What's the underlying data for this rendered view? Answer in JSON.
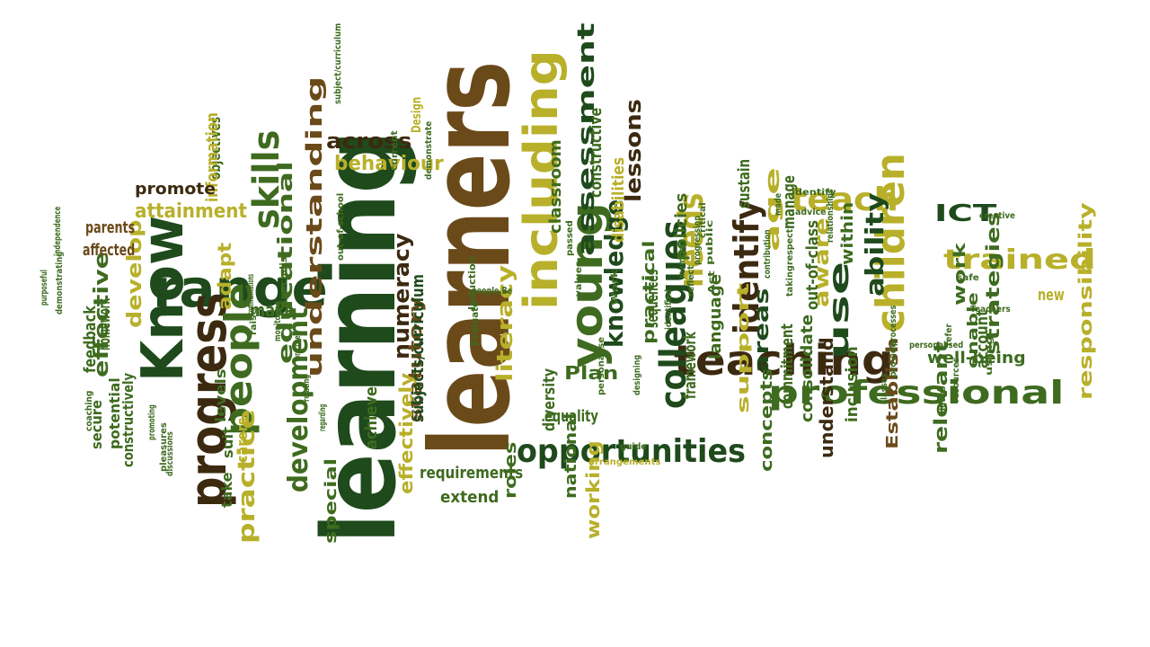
{
  "palette": {
    "dark_green": "#1f4a1c",
    "green": "#3e6b1f",
    "olive": "#9a9a1e",
    "yellow_olive": "#b8b02a",
    "brown": "#6b4a1a",
    "dark_brown": "#3c2a10"
  },
  "words": [
    {
      "text": "learning",
      "color": "dark_green"
    },
    {
      "text": "learners",
      "color": "brown"
    },
    {
      "text": "Know",
      "color": "dark_green"
    },
    {
      "text": "range",
      "color": "dark_green"
    },
    {
      "text": "progress",
      "color": "dark_brown"
    },
    {
      "text": "including",
      "color": "yellow_olive"
    },
    {
      "text": "teaching",
      "color": "dark_brown"
    },
    {
      "text": "young",
      "color": "green"
    },
    {
      "text": "children",
      "color": "yellow_olive"
    },
    {
      "text": "professional",
      "color": "green"
    },
    {
      "text": "people",
      "color": "green"
    },
    {
      "text": "opportunities",
      "color": "dark_green"
    },
    {
      "text": "colleagues",
      "color": "dark_green"
    },
    {
      "text": "teach",
      "color": "yellow_olive"
    },
    {
      "text": "trained",
      "color": "yellow_olive"
    },
    {
      "text": "use",
      "color": "dark_green"
    },
    {
      "text": "ability",
      "color": "dark_green"
    },
    {
      "text": "needs",
      "color": "yellow_olive"
    },
    {
      "text": "identify",
      "color": "dark_brown"
    },
    {
      "text": "skills",
      "color": "green"
    },
    {
      "text": "practice",
      "color": "yellow_olive"
    },
    {
      "text": "development",
      "color": "green"
    },
    {
      "text": "across",
      "color": "dark_brown"
    },
    {
      "text": "assessment",
      "color": "dark_green"
    },
    {
      "text": "knowledge",
      "color": "dark_green"
    },
    {
      "text": "ICT",
      "color": "dark_green"
    },
    {
      "text": "behaviour",
      "color": "yellow_olive"
    },
    {
      "text": "understanding",
      "color": "brown"
    },
    {
      "text": "educational",
      "color": "green"
    },
    {
      "text": "effective",
      "color": "green"
    },
    {
      "text": "develop",
      "color": "yellow_olive"
    },
    {
      "text": "attainment",
      "color": "yellow_olive"
    },
    {
      "text": "literacy",
      "color": "yellow_olive"
    },
    {
      "text": "numeracy",
      "color": "dark_brown"
    },
    {
      "text": "lessons",
      "color": "dark_brown"
    },
    {
      "text": "areas",
      "color": "dark_green"
    },
    {
      "text": "age",
      "color": "yellow_olive"
    },
    {
      "text": "aware",
      "color": "yellow_olive"
    },
    {
      "text": "well-being",
      "color": "green"
    },
    {
      "text": "responsibility",
      "color": "yellow_olive"
    },
    {
      "text": "strategies",
      "color": "green"
    },
    {
      "text": "work",
      "color": "green"
    },
    {
      "text": "Plan",
      "color": "green"
    },
    {
      "text": "adapt",
      "color": "yellow_olive"
    },
    {
      "text": "make",
      "color": "green"
    },
    {
      "text": "statutory",
      "color": "brown"
    },
    {
      "text": "effectively",
      "color": "yellow_olive"
    },
    {
      "text": "working",
      "color": "yellow_olive"
    },
    {
      "text": "extend",
      "color": "green"
    },
    {
      "text": "requirements",
      "color": "green"
    },
    {
      "text": "equality",
      "color": "green"
    },
    {
      "text": "diversity",
      "color": "green"
    },
    {
      "text": "practical",
      "color": "green"
    },
    {
      "text": "framework",
      "color": "green"
    },
    {
      "text": "support",
      "color": "yellow_olive"
    },
    {
      "text": "understand",
      "color": "dark_brown"
    },
    {
      "text": "consolidate",
      "color": "green"
    },
    {
      "text": "inclusion",
      "color": "green"
    },
    {
      "text": "Establish",
      "color": "brown"
    },
    {
      "text": "relevant",
      "color": "green"
    },
    {
      "text": "account",
      "color": "green"
    },
    {
      "text": "new",
      "color": "yellow_olive"
    },
    {
      "text": "enable",
      "color": "green"
    },
    {
      "text": "language",
      "color": "green"
    },
    {
      "text": "commitment",
      "color": "green"
    },
    {
      "text": "concepts",
      "color": "green"
    },
    {
      "text": "out-of-class",
      "color": "green"
    },
    {
      "text": "within",
      "color": "green"
    },
    {
      "text": "manage",
      "color": "green"
    },
    {
      "text": "sustain",
      "color": "green"
    },
    {
      "text": "policies",
      "color": "green"
    },
    {
      "text": "sequences",
      "color": "green"
    },
    {
      "text": "disabilities",
      "color": "yellow_olive"
    },
    {
      "text": "constructive",
      "color": "green"
    },
    {
      "text": "classroom",
      "color": "green"
    },
    {
      "text": "national",
      "color": "green"
    },
    {
      "text": "roles",
      "color": "green"
    },
    {
      "text": "special",
      "color": "green"
    },
    {
      "text": "achieve",
      "color": "green"
    },
    {
      "text": "subjects/curriculum",
      "color": "dark_green"
    },
    {
      "text": "Design",
      "color": "yellow_olive"
    },
    {
      "text": "levels",
      "color": "green"
    },
    {
      "text": "suit",
      "color": "green"
    },
    {
      "text": "take",
      "color": "green"
    },
    {
      "text": "carers",
      "color": "yellow_olive"
    },
    {
      "text": "objectives",
      "color": "green"
    },
    {
      "text": "information",
      "color": "yellow_olive"
    },
    {
      "text": "promote",
      "color": "dark_brown"
    },
    {
      "text": "parents",
      "color": "brown"
    },
    {
      "text": "affected",
      "color": "brown"
    },
    {
      "text": "homework",
      "color": "green"
    },
    {
      "text": "feedback",
      "color": "green"
    },
    {
      "text": "secure",
      "color": "green"
    },
    {
      "text": "potential",
      "color": "green"
    },
    {
      "text": "constructively",
      "color": "green"
    },
    {
      "text": "specialist",
      "color": "green"
    },
    {
      "text": "subject/curriculum",
      "color": "green"
    },
    {
      "text": "out-of-school",
      "color": "green"
    },
    {
      "text": "current",
      "color": "green"
    },
    {
      "text": "demonstrate",
      "color": "green"
    },
    {
      "text": "people,Be",
      "color": "green"
    },
    {
      "text": "Induction",
      "color": "green"
    },
    {
      "text": "Evaluate",
      "color": "green"
    },
    {
      "text": "passed",
      "color": "green"
    },
    {
      "text": "values",
      "color": "green"
    },
    {
      "text": "Work",
      "color": "green"
    },
    {
      "text": "guide",
      "color": "green"
    },
    {
      "text": "personalise",
      "color": "green"
    },
    {
      "text": "arrangements",
      "color": "yellow_olive"
    },
    {
      "text": "designing",
      "color": "green"
    },
    {
      "text": "identified",
      "color": "green"
    },
    {
      "text": "member",
      "color": "green"
    },
    {
      "text": "reflect",
      "color": "green"
    },
    {
      "text": "progression",
      "color": "green"
    },
    {
      "text": "critical",
      "color": "green"
    },
    {
      "text": "public",
      "color": "green"
    },
    {
      "text": "Act",
      "color": "green"
    },
    {
      "text": "respect",
      "color": "green"
    },
    {
      "text": "taking",
      "color": "green"
    },
    {
      "text": "contribution",
      "color": "green"
    },
    {
      "text": "made",
      "color": "green"
    },
    {
      "text": "advice",
      "color": "green"
    },
    {
      "text": "identify",
      "color": "green"
    },
    {
      "text": "relationships",
      "color": "green"
    },
    {
      "text": "processes",
      "color": "green"
    },
    {
      "text": "provide",
      "color": "green"
    },
    {
      "text": "classes",
      "color": "green"
    },
    {
      "text": "personalised",
      "color": "green"
    },
    {
      "text": "duties",
      "color": "green"
    },
    {
      "text": "refer",
      "color": "green"
    },
    {
      "text": "resources",
      "color": "green"
    },
    {
      "text": "Teachers",
      "color": "green"
    },
    {
      "text": "using",
      "color": "green"
    },
    {
      "text": "safe",
      "color": "green"
    },
    {
      "text": "creative",
      "color": "green"
    },
    {
      "text": "coaching",
      "color": "green"
    },
    {
      "text": "purposeful",
      "color": "green"
    },
    {
      "text": "demonstrating",
      "color": "green"
    },
    {
      "text": "independence",
      "color": "green"
    },
    {
      "text": "promoting",
      "color": "green"
    },
    {
      "text": "pleasures",
      "color": "green"
    },
    {
      "text": "discussions",
      "color": "green"
    },
    {
      "text": "monitoring",
      "color": "green"
    },
    {
      "text": "practices",
      "color": "green"
    },
    {
      "text": "relating",
      "color": "green"
    },
    {
      "text": "regarding",
      "color": "green"
    },
    {
      "text": "communications",
      "color": "green"
    },
    {
      "text": "raise",
      "color": "green"
    }
  ]
}
